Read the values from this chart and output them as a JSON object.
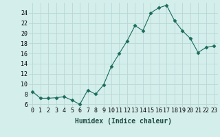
{
  "x": [
    0,
    1,
    2,
    3,
    4,
    5,
    6,
    7,
    8,
    9,
    10,
    11,
    12,
    13,
    14,
    15,
    16,
    17,
    18,
    19,
    20,
    21,
    22,
    23
  ],
  "y": [
    8.5,
    7.2,
    7.2,
    7.3,
    7.5,
    6.8,
    6.0,
    8.8,
    8.0,
    9.8,
    13.5,
    16.0,
    18.5,
    21.5,
    20.5,
    24.0,
    25.0,
    25.5,
    22.5,
    20.5,
    19.0,
    16.2,
    17.2,
    17.5
  ],
  "line_color": "#1a6b5a",
  "marker": "D",
  "marker_size": 2.5,
  "bg_color": "#d4eeec",
  "grid_color": "#b8d8d5",
  "xlabel": "Humidex (Indice chaleur)",
  "ylabel_ticks": [
    6,
    8,
    10,
    12,
    14,
    16,
    18,
    20,
    22,
    24
  ],
  "xlim": [
    -0.5,
    23.5
  ],
  "ylim": [
    5.5,
    26.0
  ],
  "label_fontsize": 7,
  "tick_fontsize": 6
}
